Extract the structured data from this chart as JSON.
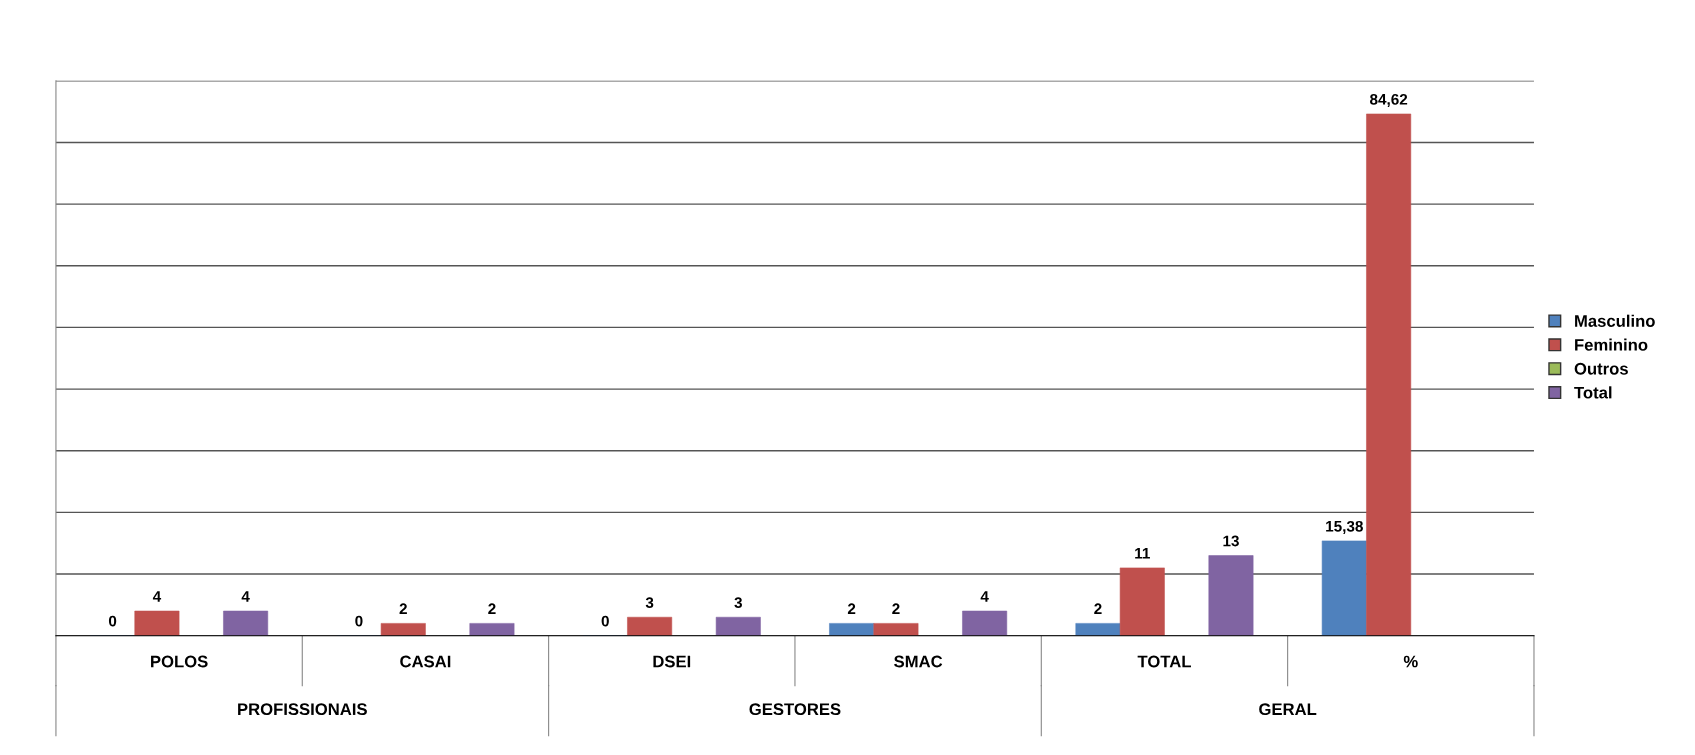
{
  "chart_data": {
    "type": "bar",
    "categories": [
      "POLOS",
      "CASAI",
      "DSEI",
      "SMAC",
      "TOTAL",
      "%"
    ],
    "annotations": [
      "PROFISSIONAIS",
      "GESTORES",
      "GERAL"
    ],
    "series": [
      {
        "name": "Masculino",
        "color": "#4f81bd",
        "values": [
          0,
          0,
          0,
          2,
          2,
          15.38
        ],
        "value_labels": [
          "0",
          "0",
          "0",
          "2",
          "2",
          "15,38"
        ]
      },
      {
        "name": "Feminino",
        "color": "#c0504d",
        "values": [
          4,
          2,
          3,
          2,
          11,
          84.62
        ],
        "value_labels": [
          "4",
          "2",
          "3",
          "2",
          "11",
          "84,62"
        ]
      },
      {
        "name": "Outros",
        "color": "#9bbb59",
        "values": [
          null,
          null,
          null,
          null,
          null,
          null
        ]
      },
      {
        "name": "Total",
        "color": "#8064a2",
        "values": [
          4,
          2,
          3,
          4,
          13,
          null
        ],
        "value_labels": [
          "4",
          "2",
          "3",
          "4",
          "13",
          null
        ]
      }
    ],
    "ylim": [
      0,
      90
    ],
    "yticks": [
      {
        "value": 0,
        "label": null
      },
      {
        "value": 10,
        "label": null
      },
      {
        "value": 20,
        "label": null
      },
      {
        "value": 30,
        "label": null
      },
      {
        "value": 40,
        "label": null
      },
      {
        "value": 50,
        "label": null
      },
      {
        "value": 60,
        "label": null
      },
      {
        "value": 70,
        "label": null
      },
      {
        "value": 80,
        "label": null
      },
      {
        "value": 90,
        "label": null
      }
    ],
    "tick_labels": "x",
    "grid": "y",
    "legend": "right"
  }
}
